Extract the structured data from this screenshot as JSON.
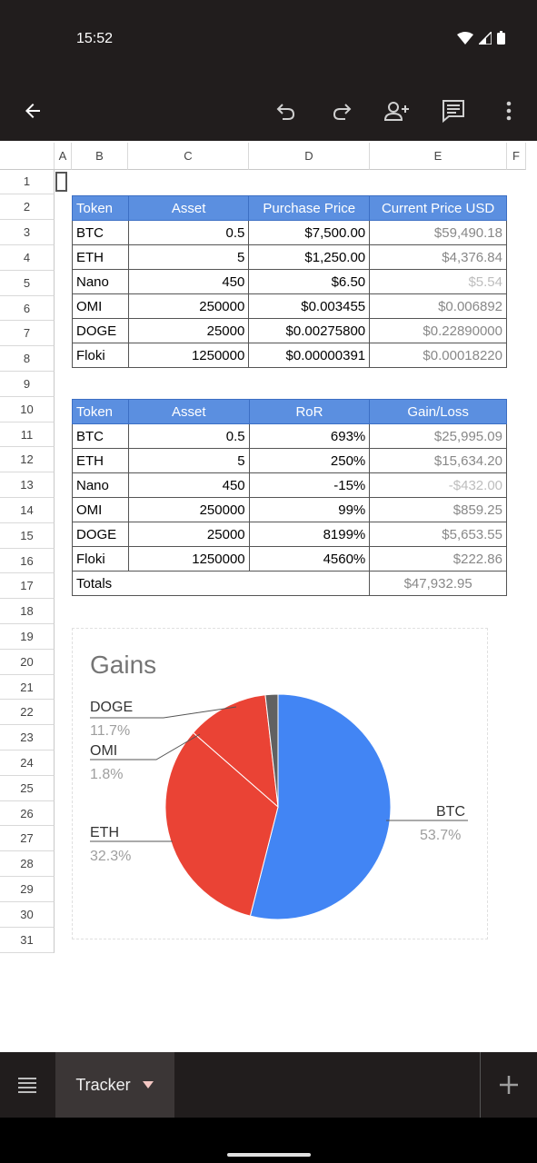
{
  "status": {
    "time": "15:52"
  },
  "toolbar": {
    "icons": [
      "back-arrow-icon",
      "undo-icon",
      "redo-icon",
      "add-person-icon",
      "comment-icon",
      "more-vert-icon"
    ]
  },
  "columns": [
    "A",
    "B",
    "C",
    "D",
    "E",
    "F"
  ],
  "rows": [
    "1",
    "2",
    "3",
    "4",
    "5",
    "6",
    "7",
    "8",
    "9",
    "10",
    "11",
    "12",
    "13",
    "14",
    "15",
    "16",
    "17",
    "18",
    "19",
    "20",
    "21",
    "22",
    "23",
    "24",
    "25",
    "26",
    "27",
    "28",
    "29",
    "30",
    "31"
  ],
  "table1": {
    "headers": [
      "Token",
      "Asset",
      "Purchase Price",
      "Current Price USD"
    ],
    "rows": [
      [
        "BTC",
        "0.5",
        "$7,500.00",
        "$59,490.18"
      ],
      [
        "ETH",
        "5",
        "$1,250.00",
        "$4,376.84"
      ],
      [
        "Nano",
        "450",
        "$6.50",
        "$5.54"
      ],
      [
        "OMI",
        "250000",
        "$0.003455",
        "$0.006892"
      ],
      [
        "DOGE",
        "25000",
        "$0.00275800",
        "$0.22890000"
      ],
      [
        "Floki",
        "1250000",
        "$0.00000391",
        "$0.00018220"
      ]
    ]
  },
  "table2": {
    "headers": [
      "Token",
      "Asset",
      "RoR",
      "Gain/Loss"
    ],
    "rows": [
      [
        "BTC",
        "0.5",
        "693%",
        "$25,995.09"
      ],
      [
        "ETH",
        "5",
        "250%",
        "$15,634.20"
      ],
      [
        "Nano",
        "450",
        "-15%",
        "-$432.00"
      ],
      [
        "OMI",
        "250000",
        "99%",
        "$859.25"
      ],
      [
        "DOGE",
        "25000",
        "8199%",
        "$5,653.55"
      ],
      [
        "Floki",
        "1250000",
        "4560%",
        "$222.86"
      ]
    ],
    "totals_label": "Totals",
    "totals_value": "$47,932.95"
  },
  "chart_data": {
    "type": "pie",
    "title": "Gains",
    "slices": [
      {
        "label": "BTC",
        "value": 53.7,
        "pct_label": "53.7%",
        "color": "#4285f4"
      },
      {
        "label": "ETH",
        "value": 32.3,
        "pct_label": "32.3%",
        "color": "#ea4335"
      },
      {
        "label": "DOGE",
        "value": 11.7,
        "pct_label": "11.7%",
        "color": "#ea4335"
      },
      {
        "label": "OMI",
        "value": 1.8,
        "pct_label": "1.8%",
        "color": "#616161"
      }
    ]
  },
  "bottom": {
    "tab_label": "Tracker"
  }
}
